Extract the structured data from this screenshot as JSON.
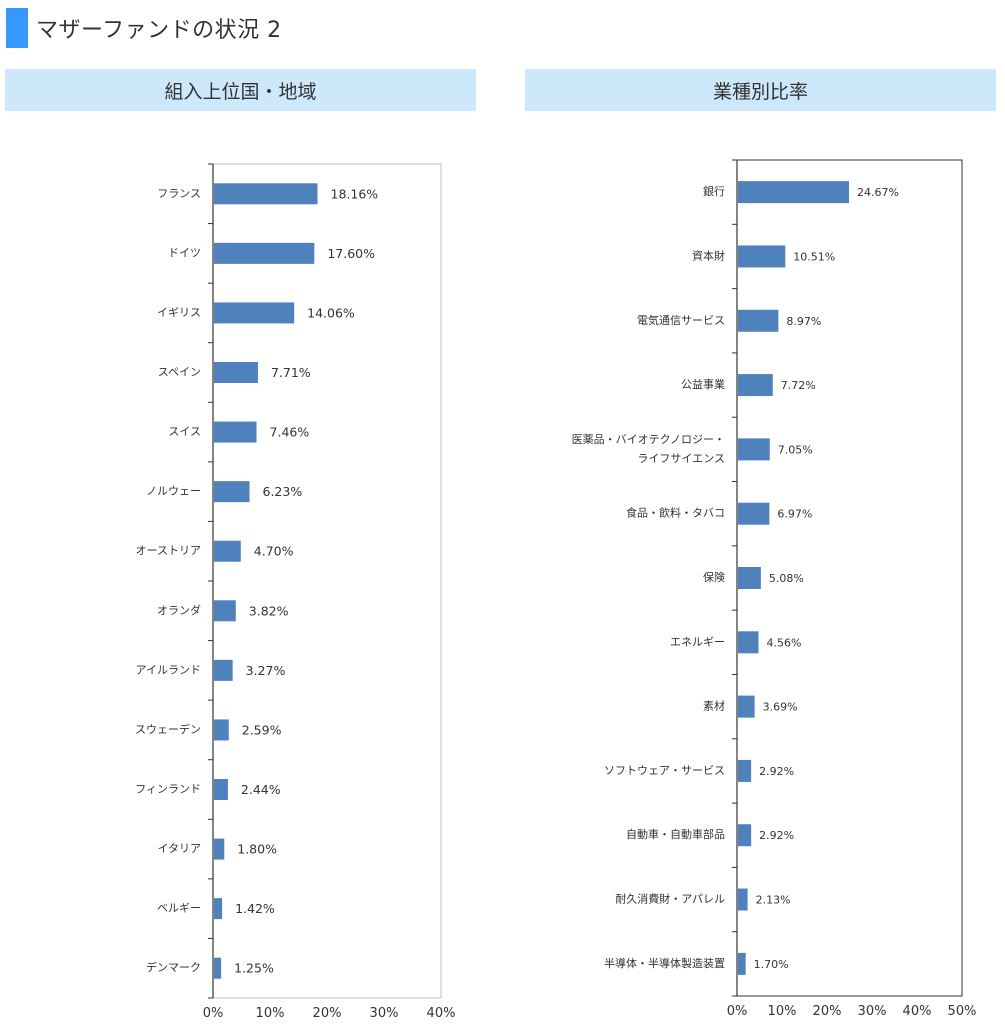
{
  "page_title": "マザーファンドの状況 2",
  "colors": {
    "accent": "#3399ff",
    "header_bg": "#cce8fa",
    "bar": "#4f81bd"
  },
  "chart_data": [
    {
      "type": "bar",
      "orientation": "horizontal",
      "title": "組入上位国・地域",
      "categories": [
        "フランス",
        "ドイツ",
        "イギリス",
        "スペイン",
        "スイス",
        "ノルウェー",
        "オーストリア",
        "オランダ",
        "アイルランド",
        "スウェーデン",
        "フィンランド",
        "イタリア",
        "ベルギー",
        "デンマーク"
      ],
      "values": [
        18.16,
        17.6,
        14.06,
        7.71,
        7.46,
        6.23,
        4.7,
        3.82,
        3.27,
        2.59,
        2.44,
        1.8,
        1.42,
        1.25
      ],
      "value_labels": [
        "18.16%",
        "17.60%",
        "14.06%",
        "7.71%",
        "7.46%",
        "6.23%",
        "4.70%",
        "3.82%",
        "3.27%",
        "2.59%",
        "2.44%",
        "1.80%",
        "1.42%",
        "1.25%"
      ],
      "xlim": [
        0,
        40
      ],
      "xticks": [
        "0%",
        "10%",
        "20%",
        "30%",
        "40%"
      ],
      "grid": false
    },
    {
      "type": "bar",
      "orientation": "horizontal",
      "title": "業種別比率",
      "categories": [
        [
          "銀行"
        ],
        [
          "資本財"
        ],
        [
          "電気通信サービス"
        ],
        [
          "公益事業"
        ],
        [
          "医薬品・バイオテクノロジー・",
          "ライフサイエンス"
        ],
        [
          "食品・飲料・タバコ"
        ],
        [
          "保険"
        ],
        [
          "エネルギー"
        ],
        [
          "素材"
        ],
        [
          "ソフトウェア・サービス"
        ],
        [
          "自動車・自動車部品"
        ],
        [
          "耐久消費財・アパレル"
        ],
        [
          "半導体・半導体製造装置"
        ]
      ],
      "values": [
        24.67,
        10.51,
        8.97,
        7.72,
        7.05,
        6.97,
        5.08,
        4.56,
        3.69,
        2.92,
        2.92,
        2.13,
        1.7
      ],
      "value_labels": [
        "24.67%",
        "10.51%",
        "8.97%",
        "7.72%",
        "7.05%",
        "6.97%",
        "5.08%",
        "4.56%",
        "3.69%",
        "2.92%",
        "2.92%",
        "2.13%",
        "1.70%"
      ],
      "xlim": [
        0,
        50
      ],
      "xticks": [
        "0%",
        "10%",
        "20%",
        "30%",
        "40%",
        "50%"
      ],
      "grid": false
    }
  ]
}
